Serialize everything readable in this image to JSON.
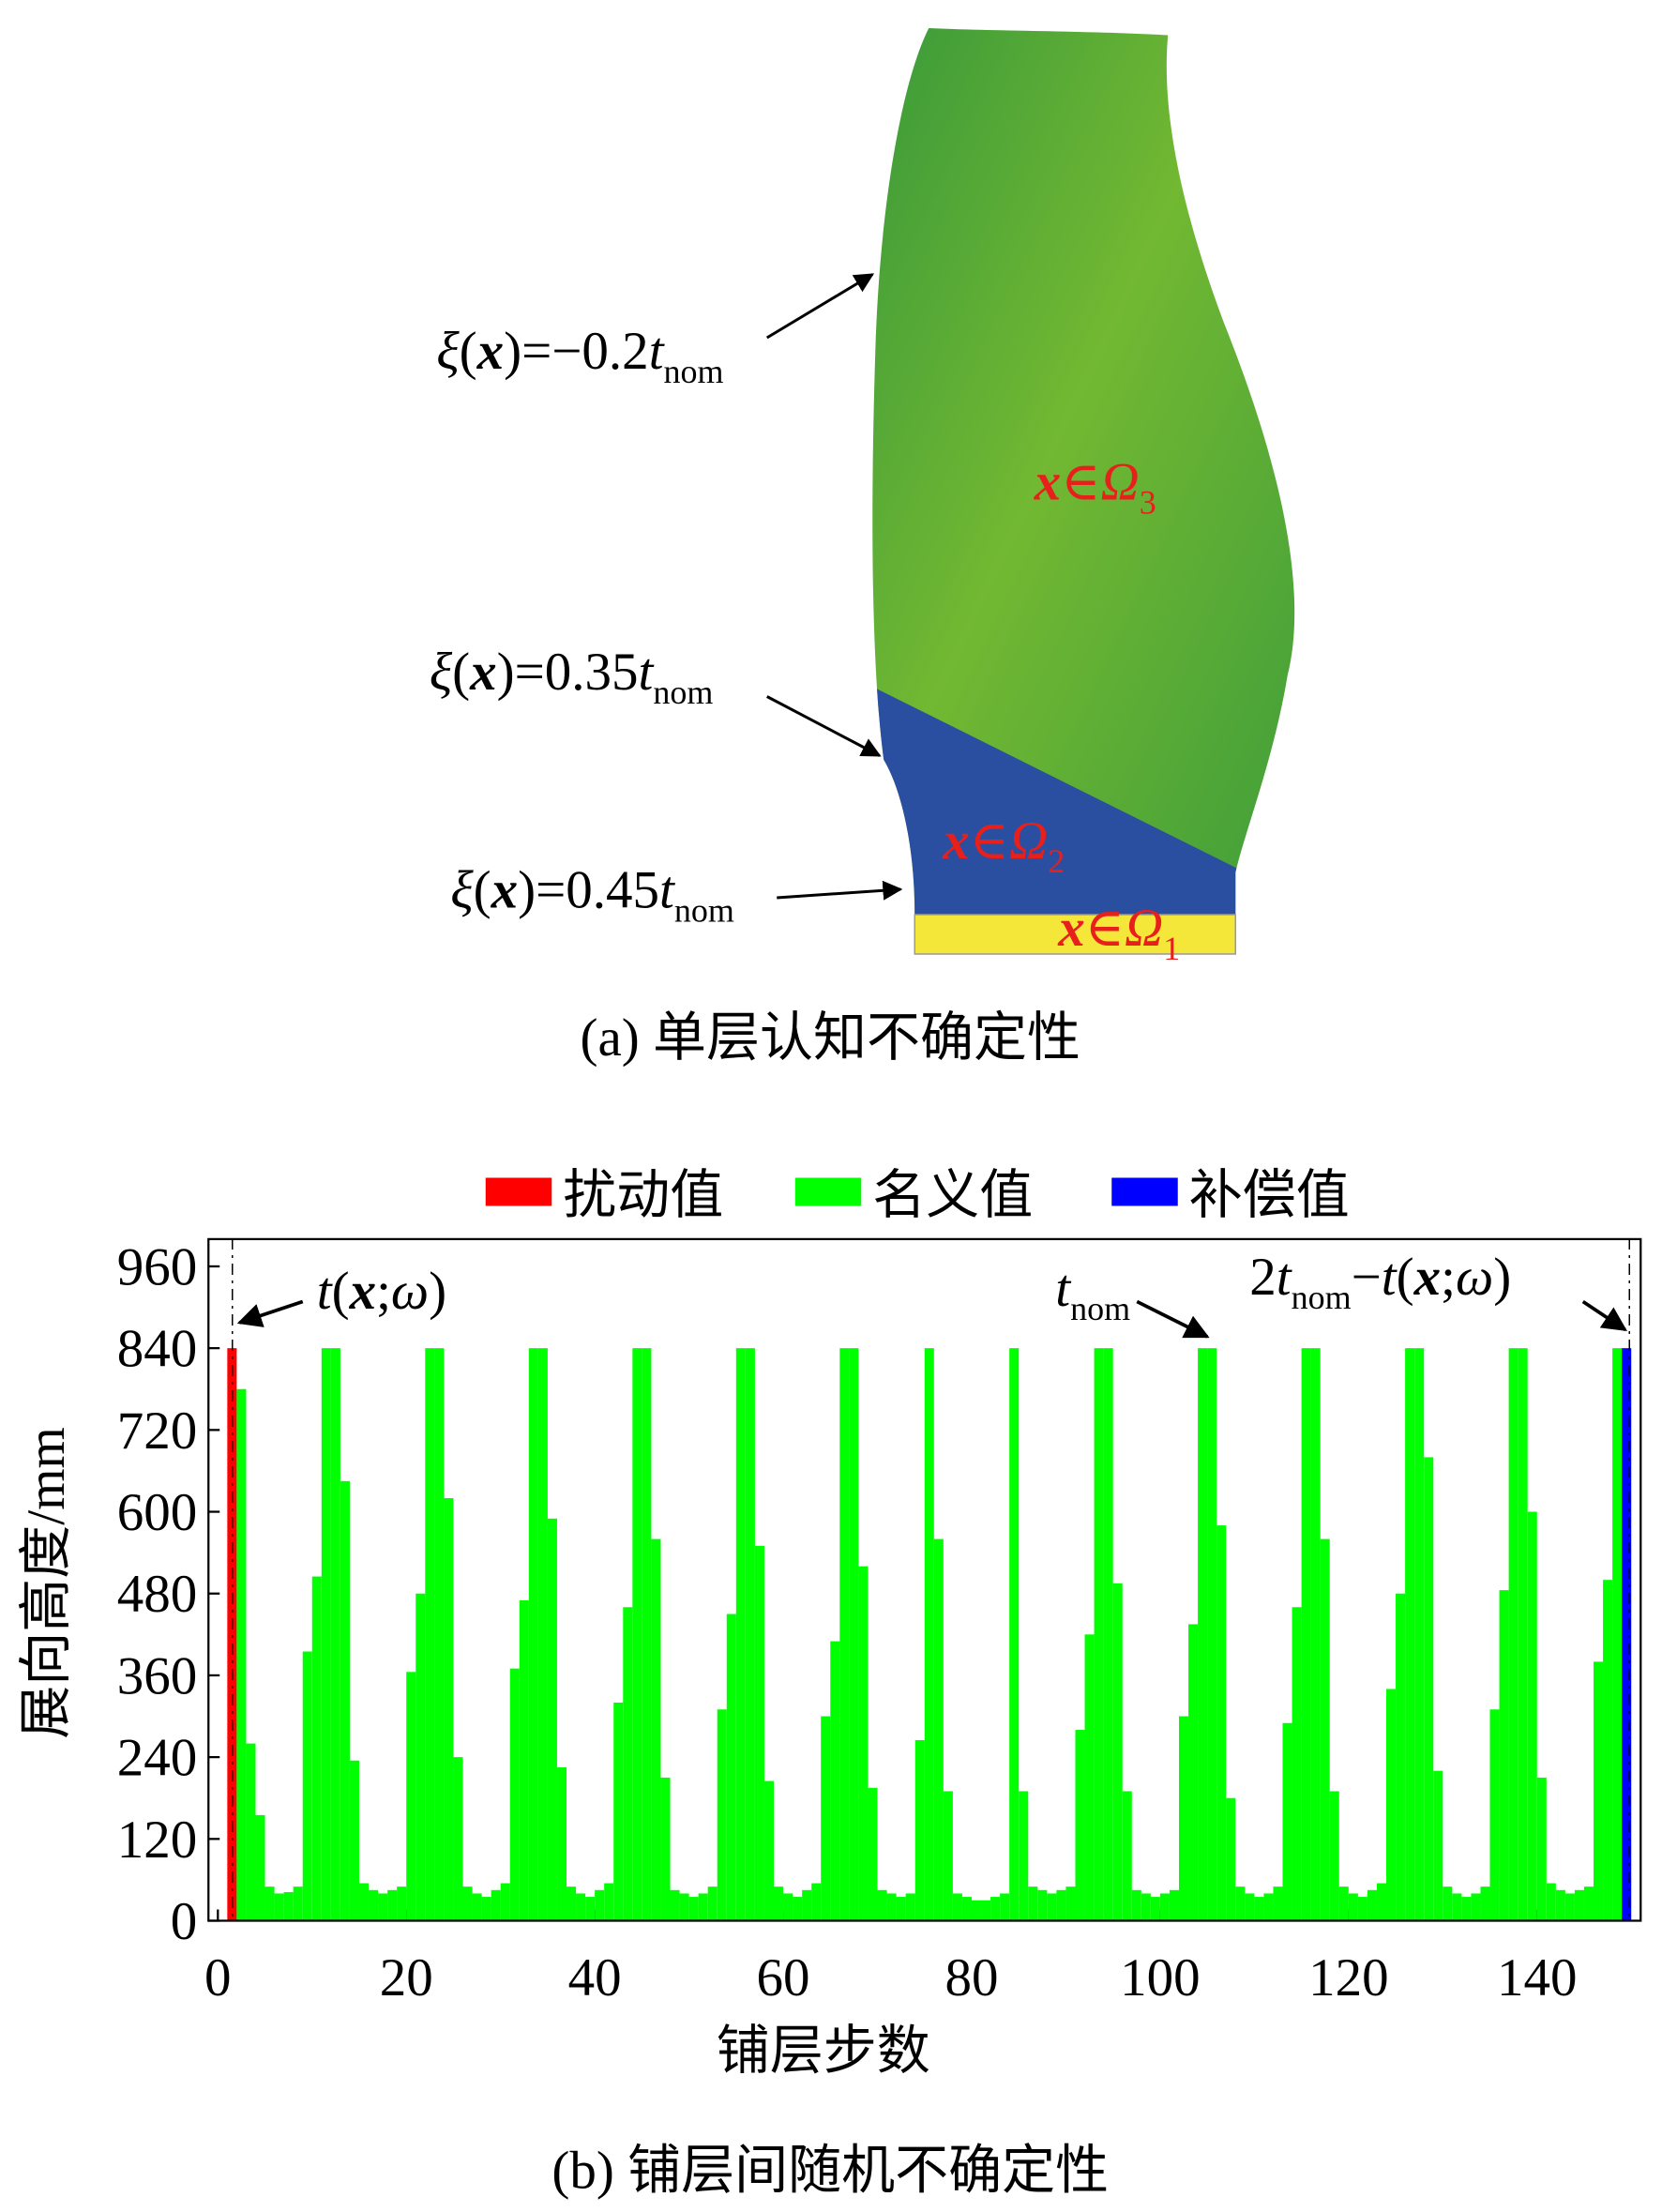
{
  "figure_a": {
    "annotations": [
      {
        "parts": [
          "ξ",
          "(",
          "x",
          ")=−0.2",
          "t",
          "nom"
        ]
      },
      {
        "parts": [
          "ξ",
          "(",
          "x",
          ")=0.35",
          "t",
          "nom"
        ]
      },
      {
        "parts": [
          "ξ",
          "(",
          "x",
          ")=0.45",
          "t",
          "nom"
        ]
      }
    ],
    "regions": [
      {
        "parts": [
          "x",
          "∈",
          "Ω",
          "3"
        ]
      },
      {
        "parts": [
          "x",
          "∈",
          "Ω",
          "2"
        ]
      },
      {
        "parts": [
          "x",
          "∈",
          "Ω",
          "1"
        ]
      }
    ],
    "caption": "(a) 单层认知不确定性"
  },
  "chart_data": {
    "type": "bar",
    "xlabel": "铺层步数",
    "ylabel": "展向高度/mm",
    "caption": "(b) 铺层间随机不确定性",
    "xlim": [
      -1,
      151
    ],
    "xticks": [
      0,
      20,
      40,
      60,
      80,
      100,
      120,
      140
    ],
    "ylim": [
      0,
      1000
    ],
    "yticks": [
      0,
      120,
      240,
      360,
      480,
      600,
      720,
      840,
      960
    ],
    "legend": "top",
    "series": [
      {
        "name": "扰动值",
        "color": "#ff0000",
        "x": [
          1
        ],
        "values": [
          840
        ]
      },
      {
        "name": "名义值",
        "color": "#00ff00",
        "x": [
          2,
          3,
          4,
          5,
          6,
          7,
          8,
          9,
          10,
          11,
          12,
          13,
          14,
          15,
          16,
          17,
          18,
          19,
          20,
          21,
          22,
          23,
          24,
          25,
          26,
          27,
          28,
          29,
          30,
          31,
          32,
          33,
          34,
          35,
          36,
          37,
          38,
          39,
          40,
          41,
          42,
          43,
          44,
          45,
          46,
          47,
          48,
          49,
          50,
          51,
          52,
          53,
          54,
          55,
          56,
          57,
          58,
          59,
          60,
          61,
          62,
          63,
          64,
          65,
          66,
          67,
          68,
          69,
          70,
          71,
          72,
          73,
          74,
          75,
          76,
          77,
          78,
          79,
          80,
          81,
          82,
          83,
          84,
          85,
          86,
          87,
          88,
          89,
          90,
          91,
          92,
          93,
          94,
          95,
          96,
          97,
          98,
          99,
          100,
          101,
          102,
          103,
          104,
          105,
          106,
          107,
          108,
          109,
          110,
          111,
          112,
          113,
          114,
          115,
          116,
          117,
          118,
          119,
          120,
          121,
          122,
          123,
          124,
          125,
          126,
          127,
          128,
          129,
          130,
          131,
          132,
          133,
          134,
          135,
          136,
          137,
          138,
          139,
          140,
          141,
          142,
          143,
          144,
          145,
          146,
          147,
          148
        ],
        "values": [
          780,
          260,
          155,
          50,
          40,
          42,
          50,
          395,
          505,
          840,
          840,
          645,
          235,
          55,
          45,
          40,
          45,
          50,
          365,
          480,
          840,
          840,
          620,
          240,
          50,
          40,
          35,
          45,
          55,
          370,
          470,
          840,
          840,
          590,
          225,
          50,
          40,
          35,
          45,
          55,
          320,
          460,
          840,
          840,
          560,
          210,
          45,
          40,
          35,
          40,
          50,
          310,
          450,
          840,
          840,
          550,
          205,
          50,
          40,
          35,
          45,
          55,
          300,
          410,
          840,
          840,
          520,
          195,
          45,
          40,
          35,
          40,
          265,
          840,
          560,
          190,
          40,
          35,
          30,
          30,
          35,
          40,
          840,
          190,
          50,
          45,
          40,
          45,
          50,
          280,
          420,
          840,
          840,
          495,
          190,
          45,
          40,
          35,
          40,
          45,
          300,
          435,
          840,
          840,
          580,
          180,
          50,
          40,
          35,
          40,
          50,
          290,
          460,
          840,
          840,
          560,
          190,
          50,
          40,
          35,
          45,
          55,
          340,
          480,
          840,
          840,
          680,
          220,
          50,
          40,
          35,
          40,
          50,
          310,
          485,
          840,
          840,
          600,
          210,
          55,
          45,
          40,
          45,
          50,
          380,
          500,
          840
        ]
      },
      {
        "name": "补偿值",
        "color": "#0000ff",
        "x": [
          149
        ],
        "values": [
          840
        ]
      }
    ],
    "annotations": [
      {
        "parts": [
          "t",
          "(",
          "x",
          ";",
          "ω",
          ")"
        ]
      },
      {
        "parts": [
          "t",
          "nom"
        ]
      },
      {
        "parts": [
          "2",
          "t",
          "nom",
          "−",
          "t",
          "(",
          "x",
          ";",
          "ω",
          ")"
        ]
      }
    ]
  }
}
